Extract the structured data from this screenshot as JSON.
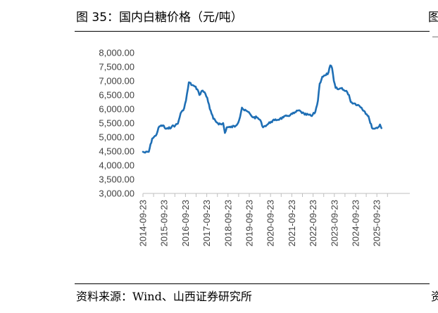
{
  "figure": {
    "title": "图 35：国内白糖价格（元/吨）",
    "source": "资料来源：Wind、山西证券研究所",
    "edge_glyph_top": "图",
    "edge_glyph_bottom": "资"
  },
  "chart_data": {
    "type": "line",
    "title": "",
    "xlabel": "",
    "ylabel": "",
    "ylim": [
      3000,
      8000
    ],
    "yticks": [
      "8,000.00",
      "7,500.00",
      "7,000.00",
      "6,500.00",
      "6,000.00",
      "5,500.00",
      "5,000.00",
      "4,500.00",
      "4,000.00",
      "3,500.00",
      "3,000.00"
    ],
    "xticks": [
      "2014-09-23",
      "2015-09-23",
      "2016-09-23",
      "2017-09-23",
      "2018-09-23",
      "2019-09-23",
      "2020-09-23",
      "2021-09-23",
      "2022-09-23",
      "2023-09-23",
      "2024-09-23",
      "2025-09-23"
    ],
    "grid": false,
    "legend": "none",
    "line_color": "#1f6fb5",
    "series": [
      {
        "values": [
          [
            "2014-09-23",
            4480
          ],
          [
            "2014-11-01",
            4450
          ],
          [
            "2015-01-01",
            4480
          ],
          [
            "2015-03-01",
            4950
          ],
          [
            "2015-05-01",
            5050
          ],
          [
            "2015-07-01",
            5380
          ],
          [
            "2015-09-01",
            5420
          ],
          [
            "2015-10-15",
            5300
          ],
          [
            "2015-12-01",
            5300
          ],
          [
            "2016-02-01",
            5380
          ],
          [
            "2016-04-01",
            5420
          ],
          [
            "2016-05-15",
            5480
          ],
          [
            "2016-07-01",
            5850
          ],
          [
            "2016-08-15",
            5950
          ],
          [
            "2016-10-01",
            6300
          ],
          [
            "2016-11-20",
            6950
          ],
          [
            "2017-01-15",
            6850
          ],
          [
            "2017-03-01",
            6800
          ],
          [
            "2017-04-15",
            6700
          ],
          [
            "2017-05-20",
            6500
          ],
          [
            "2017-07-01",
            6650
          ],
          [
            "2017-08-15",
            6600
          ],
          [
            "2017-10-01",
            6400
          ],
          [
            "2017-11-15",
            6000
          ],
          [
            "2018-01-15",
            5650
          ],
          [
            "2018-04-01",
            5500
          ],
          [
            "2018-06-01",
            5450
          ],
          [
            "2018-07-01",
            5500
          ],
          [
            "2018-08-01",
            5150
          ],
          [
            "2018-09-01",
            5350
          ],
          [
            "2018-11-01",
            5350
          ],
          [
            "2019-02-01",
            5400
          ],
          [
            "2019-04-01",
            5600
          ],
          [
            "2019-05-20",
            6050
          ],
          [
            "2019-07-01",
            5950
          ],
          [
            "2019-09-01",
            5900
          ],
          [
            "2019-10-15",
            5800
          ],
          [
            "2019-12-01",
            5700
          ],
          [
            "2020-02-01",
            5700
          ],
          [
            "2020-04-01",
            5600
          ],
          [
            "2020-05-01",
            5400
          ],
          [
            "2020-06-01",
            5380
          ],
          [
            "2020-08-01",
            5450
          ],
          [
            "2020-10-01",
            5550
          ],
          [
            "2020-12-01",
            5600
          ],
          [
            "2021-03-01",
            5650
          ],
          [
            "2021-05-01",
            5700
          ],
          [
            "2021-07-01",
            5750
          ],
          [
            "2021-09-01",
            5800
          ],
          [
            "2021-11-01",
            5850
          ],
          [
            "2022-01-15",
            5950
          ],
          [
            "2022-03-01",
            5900
          ],
          [
            "2022-05-01",
            5800
          ],
          [
            "2022-07-01",
            5800
          ],
          [
            "2022-09-01",
            5750
          ],
          [
            "2022-11-01",
            5900
          ],
          [
            "2022-12-15",
            6300
          ],
          [
            "2023-01-15",
            6900
          ],
          [
            "2023-03-01",
            7150
          ],
          [
            "2023-05-01",
            7200
          ],
          [
            "2023-06-15",
            7300
          ],
          [
            "2023-07-15",
            7550
          ],
          [
            "2023-08-15",
            7450
          ],
          [
            "2023-09-15",
            7000
          ],
          [
            "2023-10-15",
            6750
          ],
          [
            "2023-12-01",
            6700
          ],
          [
            "2024-02-01",
            6750
          ],
          [
            "2024-03-15",
            6650
          ],
          [
            "2024-05-01",
            6600
          ],
          [
            "2024-06-01",
            6500
          ],
          [
            "2024-07-01",
            6250
          ],
          [
            "2024-09-01",
            6200
          ],
          [
            "2024-11-01",
            6150
          ],
          [
            "2025-01-01",
            6050
          ],
          [
            "2025-03-01",
            5900
          ],
          [
            "2025-05-01",
            5750
          ],
          [
            "2025-06-01",
            5500
          ],
          [
            "2025-07-15",
            5300
          ],
          [
            "2025-09-01",
            5320
          ],
          [
            "2025-10-15",
            5350
          ],
          [
            "2025-11-15",
            5450
          ],
          [
            "2025-12-10",
            5320
          ]
        ]
      }
    ]
  }
}
